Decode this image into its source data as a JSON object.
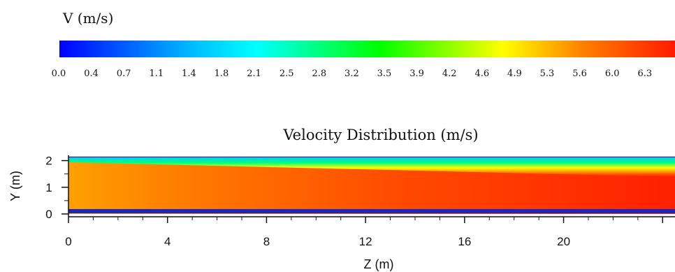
{
  "chart_data": {
    "type": "heatmap",
    "title": "Velocity Distribution (m/s)",
    "xlabel": "Z (m)",
    "ylabel": "Y (m)",
    "xlim": [
      0,
      24.5
    ],
    "ylim": [
      0,
      2.2
    ],
    "x_ticks": [
      "0",
      "4",
      "8",
      "12",
      "16",
      "20"
    ],
    "y_ticks": [
      "0",
      "1",
      "2"
    ],
    "colorbar": {
      "label": "V (m/s)",
      "range": [
        0.0,
        6.5
      ],
      "ticks": [
        "0.0",
        "0.4",
        "0.7",
        "1.1",
        "1.4",
        "1.8",
        "2.1",
        "2.5",
        "2.8",
        "3.2",
        "3.5",
        "3.9",
        "4.2",
        "4.6",
        "4.9",
        "5.3",
        "5.6",
        "6.0",
        "6.3"
      ],
      "colors": [
        "#0000ff",
        "#00ffff",
        "#00ff00",
        "#ffff00",
        "#ff8000",
        "#ff0000"
      ]
    },
    "field": {
      "core_velocity_at_inlet": 5.6,
      "core_velocity_at_outlet": 6.3,
      "wall_velocity": 0.0,
      "upper_shear_layer_y_at_inlet": 2.05,
      "upper_shear_layer_y_at_outlet": 1.6
    }
  }
}
